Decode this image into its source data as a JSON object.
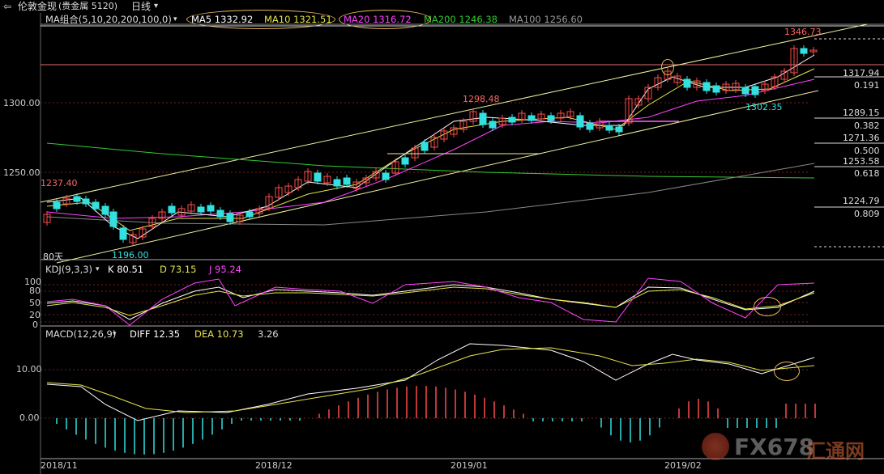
{
  "title": {
    "menu": "伦敦金现",
    "sub": "(贵金属 5120)",
    "period": "日线",
    "period_arrow": "▾"
  },
  "ma_bar": {
    "group": "MA组合(5,10,20,200,100,0)",
    "ma5": "MA5 1332.92",
    "ma10": "MA10 1321.51",
    "ma20": "MA20 1316.72",
    "ma200": "MA200 1246.38",
    "ma100": "MA100 1256.60"
  },
  "price_labels": {
    "high": "1346.73",
    "h1": "1298.48",
    "left": "1237.40",
    "low": "1196.00",
    "mid_low": "1302.35",
    "days": "80天"
  },
  "y_axis": {
    "p1300": "1300.00",
    "p1250": "1250.00"
  },
  "fib": [
    {
      "price": "1317.94",
      "ratio": "0.191"
    },
    {
      "price": "1289.15",
      "ratio": "0.382"
    },
    {
      "price": "1271.36",
      "ratio": "0.500"
    },
    {
      "price": "1253.58",
      "ratio": "0.618"
    },
    {
      "price": "1224.79",
      "ratio": "0.809"
    }
  ],
  "kdj": {
    "label": "KDJ(9,3,3)",
    "k": "K 80.51",
    "d": "D 73.15",
    "j": "J 95.24",
    "ticks": [
      "100",
      "80",
      "50",
      "20",
      "0"
    ]
  },
  "macd": {
    "label": "MACD(12,26,9)",
    "diff": "DIFF 12.35",
    "dea": "DEA 10.73",
    "val": "3.26",
    "ticks": [
      "10.00",
      "0.00"
    ]
  },
  "x_axis": [
    "2018/11",
    "2018/12",
    "2019/01",
    "2019/02"
  ],
  "watermark": {
    "brand": "FX678",
    "cn": "汇通网"
  },
  "colors": {
    "ma5": "#ffffff",
    "ma10": "#e6e64c",
    "ma20": "#ff44ff",
    "ma200": "#33cc33",
    "ma100": "#999999",
    "up": "#ff4a4a",
    "down": "#33e0e0"
  }
}
